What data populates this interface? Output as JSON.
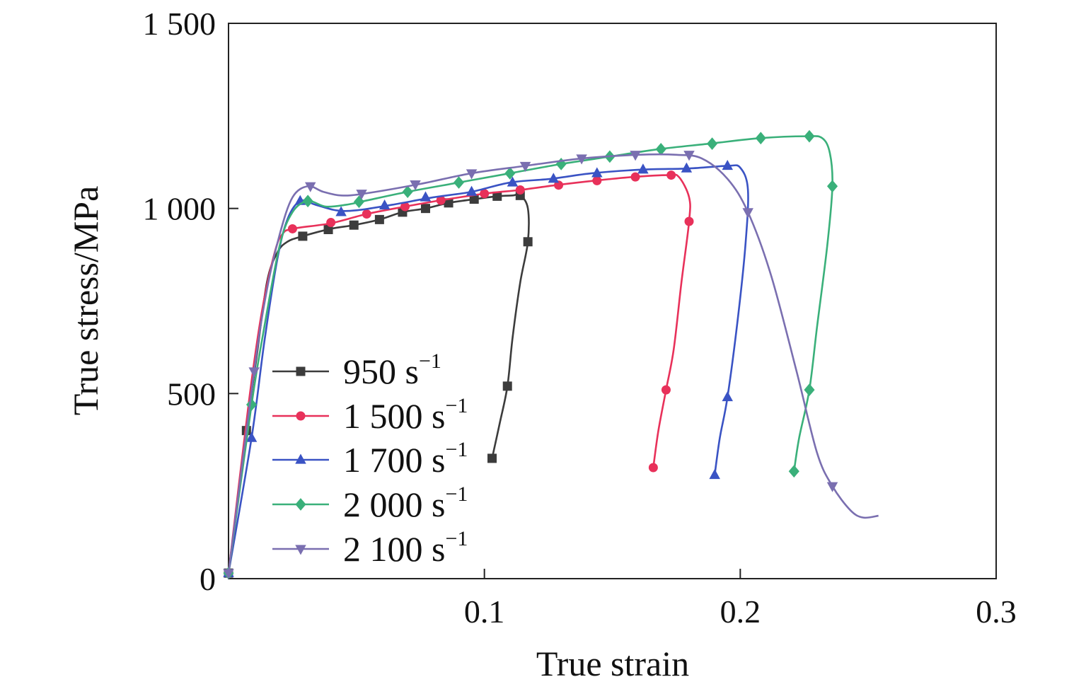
{
  "chart_data": {
    "type": "line",
    "xlabel": "True strain",
    "ylabel": "True stress/MPa",
    "xlim": [
      0,
      0.3
    ],
    "ylim": [
      0,
      1500
    ],
    "xticks": [
      {
        "value": 0.1,
        "label": "0.1"
      },
      {
        "value": 0.2,
        "label": "0.2"
      },
      {
        "value": 0.3,
        "label": "0.3"
      }
    ],
    "yticks": [
      {
        "value": 0,
        "label": "0"
      },
      {
        "value": 500,
        "label": "500"
      },
      {
        "value": 1000,
        "label": "1 000"
      },
      {
        "value": 1500,
        "label": "1 500"
      }
    ],
    "grid": false,
    "legend_position": "bottom-left",
    "superscript": "−1",
    "series": [
      {
        "name": "950 s",
        "color": "#3c3c3c",
        "marker": "square",
        "points": [
          [
            0,
            15
          ],
          [
            0.007,
            400
          ],
          [
            0.011,
            600
          ],
          [
            0.015,
            800
          ],
          [
            0.019,
            880
          ],
          [
            0.023,
            910
          ],
          [
            0.029,
            925
          ],
          [
            0.04,
            945
          ],
          [
            0.049,
            955
          ],
          [
            0.059,
            970
          ],
          [
            0.068,
            990
          ],
          [
            0.077,
            1000
          ],
          [
            0.086,
            1015
          ],
          [
            0.096,
            1025
          ],
          [
            0.105,
            1033
          ],
          [
            0.111,
            1035
          ],
          [
            0.114,
            1036
          ],
          [
            0.117,
            1000
          ],
          [
            0.117,
            910
          ],
          [
            0.114,
            800
          ],
          [
            0.111,
            650
          ],
          [
            0.109,
            520
          ],
          [
            0.106,
            420
          ],
          [
            0.103,
            325
          ]
        ],
        "markers": [
          [
            0,
            15
          ],
          [
            0.007,
            400
          ],
          [
            0.029,
            925
          ],
          [
            0.039,
            943
          ],
          [
            0.049,
            955
          ],
          [
            0.059,
            970
          ],
          [
            0.068,
            990
          ],
          [
            0.077,
            1000
          ],
          [
            0.086,
            1015
          ],
          [
            0.096,
            1025
          ],
          [
            0.105,
            1033
          ],
          [
            0.114,
            1035
          ],
          [
            0.117,
            910
          ],
          [
            0.109,
            520
          ],
          [
            0.103,
            325
          ]
        ]
      },
      {
        "name": "1 500 s",
        "color": "#e8315a",
        "marker": "circle",
        "points": [
          [
            0,
            15
          ],
          [
            0.008,
            480
          ],
          [
            0.013,
            720
          ],
          [
            0.018,
            880
          ],
          [
            0.021,
            930
          ],
          [
            0.025,
            945
          ],
          [
            0.04,
            960
          ],
          [
            0.054,
            985
          ],
          [
            0.069,
            1005
          ],
          [
            0.083,
            1022
          ],
          [
            0.1,
            1040
          ],
          [
            0.114,
            1050
          ],
          [
            0.128,
            1063
          ],
          [
            0.143,
            1075
          ],
          [
            0.158,
            1085
          ],
          [
            0.172,
            1090
          ],
          [
            0.176,
            1085
          ],
          [
            0.18,
            1030
          ],
          [
            0.18,
            965
          ],
          [
            0.177,
            800
          ],
          [
            0.174,
            620
          ],
          [
            0.171,
            510
          ],
          [
            0.168,
            400
          ],
          [
            0.166,
            300
          ]
        ],
        "markers": [
          [
            0,
            15
          ],
          [
            0.025,
            945
          ],
          [
            0.04,
            962
          ],
          [
            0.054,
            985
          ],
          [
            0.069,
            1005
          ],
          [
            0.083,
            1022
          ],
          [
            0.1,
            1040
          ],
          [
            0.114,
            1050
          ],
          [
            0.129,
            1063
          ],
          [
            0.144,
            1075
          ],
          [
            0.159,
            1085
          ],
          [
            0.173,
            1090
          ],
          [
            0.18,
            965
          ],
          [
            0.171,
            510
          ],
          [
            0.166,
            300
          ]
        ]
      },
      {
        "name": "1 700 s",
        "color": "#3a53c4",
        "marker": "triangle-up",
        "points": [
          [
            0,
            15
          ],
          [
            0.009,
            380
          ],
          [
            0.014,
            640
          ],
          [
            0.019,
            860
          ],
          [
            0.023,
            970
          ],
          [
            0.028,
            1020
          ],
          [
            0.034,
            1010
          ],
          [
            0.042,
            995
          ],
          [
            0.05,
            995
          ],
          [
            0.064,
            1010
          ],
          [
            0.08,
            1030
          ],
          [
            0.095,
            1045
          ],
          [
            0.11,
            1070
          ],
          [
            0.126,
            1080
          ],
          [
            0.142,
            1095
          ],
          [
            0.162,
            1105
          ],
          [
            0.18,
            1108
          ],
          [
            0.195,
            1115
          ],
          [
            0.2,
            1110
          ],
          [
            0.203,
            1050
          ],
          [
            0.202,
            900
          ],
          [
            0.199,
            700
          ],
          [
            0.195,
            490
          ],
          [
            0.192,
            380
          ],
          [
            0.19,
            280
          ]
        ],
        "markers": [
          [
            0,
            15
          ],
          [
            0.009,
            380
          ],
          [
            0.028,
            1020
          ],
          [
            0.044,
            990
          ],
          [
            0.061,
            1008
          ],
          [
            0.077,
            1030
          ],
          [
            0.095,
            1045
          ],
          [
            0.111,
            1070
          ],
          [
            0.127,
            1080
          ],
          [
            0.144,
            1095
          ],
          [
            0.162,
            1105
          ],
          [
            0.179,
            1108
          ],
          [
            0.195,
            1115
          ],
          [
            0.195,
            490
          ],
          [
            0.19,
            280
          ]
        ]
      },
      {
        "name": "2 000 s",
        "color": "#3ab07a",
        "marker": "diamond",
        "points": [
          [
            0,
            15
          ],
          [
            0.009,
            470
          ],
          [
            0.014,
            680
          ],
          [
            0.02,
            900
          ],
          [
            0.025,
            990
          ],
          [
            0.031,
            1020
          ],
          [
            0.038,
            1005
          ],
          [
            0.046,
            1010
          ],
          [
            0.053,
            1020
          ],
          [
            0.07,
            1045
          ],
          [
            0.09,
            1070
          ],
          [
            0.11,
            1095
          ],
          [
            0.13,
            1120
          ],
          [
            0.149,
            1140
          ],
          [
            0.168,
            1160
          ],
          [
            0.188,
            1175
          ],
          [
            0.208,
            1190
          ],
          [
            0.226,
            1195
          ],
          [
            0.232,
            1190
          ],
          [
            0.235,
            1150
          ],
          [
            0.236,
            1060
          ],
          [
            0.234,
            900
          ],
          [
            0.23,
            680
          ],
          [
            0.227,
            510
          ],
          [
            0.223,
            380
          ],
          [
            0.221,
            290
          ]
        ],
        "markers": [
          [
            0,
            15
          ],
          [
            0.009,
            470
          ],
          [
            0.031,
            1020
          ],
          [
            0.051,
            1018
          ],
          [
            0.07,
            1045
          ],
          [
            0.09,
            1070
          ],
          [
            0.11,
            1095
          ],
          [
            0.13,
            1120
          ],
          [
            0.149,
            1140
          ],
          [
            0.169,
            1160
          ],
          [
            0.189,
            1175
          ],
          [
            0.208,
            1190
          ],
          [
            0.227,
            1195
          ],
          [
            0.236,
            1060
          ],
          [
            0.227,
            510
          ],
          [
            0.221,
            290
          ]
        ]
      },
      {
        "name": "2 100 s",
        "color": "#7a6fb0",
        "marker": "triangle-down",
        "points": [
          [
            0,
            15
          ],
          [
            0.01,
            560
          ],
          [
            0.015,
            780
          ],
          [
            0.02,
            930
          ],
          [
            0.025,
            1030
          ],
          [
            0.031,
            1060
          ],
          [
            0.037,
            1045
          ],
          [
            0.044,
            1035
          ],
          [
            0.053,
            1040
          ],
          [
            0.074,
            1065
          ],
          [
            0.095,
            1095
          ],
          [
            0.116,
            1115
          ],
          [
            0.138,
            1135
          ],
          [
            0.16,
            1145
          ],
          [
            0.175,
            1145
          ],
          [
            0.185,
            1135
          ],
          [
            0.195,
            1080
          ],
          [
            0.203,
            990
          ],
          [
            0.212,
            820
          ],
          [
            0.222,
            560
          ],
          [
            0.23,
            340
          ],
          [
            0.236,
            250
          ],
          [
            0.243,
            185
          ],
          [
            0.248,
            165
          ],
          [
            0.254,
            170
          ]
        ],
        "markers": [
          [
            0,
            15
          ],
          [
            0.01,
            560
          ],
          [
            0.032,
            1060
          ],
          [
            0.052,
            1040
          ],
          [
            0.073,
            1065
          ],
          [
            0.095,
            1095
          ],
          [
            0.116,
            1115
          ],
          [
            0.138,
            1135
          ],
          [
            0.159,
            1145
          ],
          [
            0.18,
            1145
          ],
          [
            0.203,
            990
          ],
          [
            0.236,
            250
          ]
        ]
      }
    ]
  }
}
